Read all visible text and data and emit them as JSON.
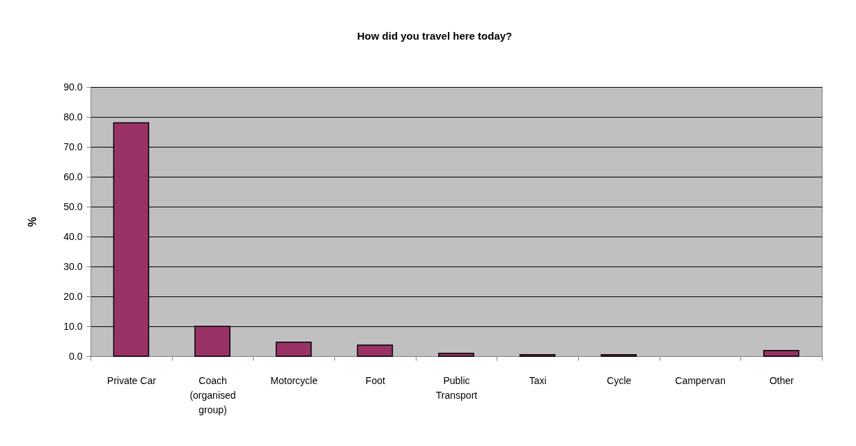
{
  "chart_data": {
    "type": "bar",
    "title": "How did you travel here today?",
    "ylabel": "%",
    "categories": [
      "Private Car",
      "Coach (organised group)",
      "Motorcycle",
      "Foot",
      "Public Transport",
      "Taxi",
      "Cycle",
      "Campervan",
      "Other"
    ],
    "values": [
      78.0,
      10.0,
      4.7,
      3.7,
      1.0,
      0.5,
      0.5,
      null,
      1.9
    ],
    "color": "#993366",
    "ylim": [
      0,
      90
    ],
    "yticks": [
      {
        "value": 0,
        "label": "0.0"
      },
      {
        "value": 10,
        "label": "10.0"
      },
      {
        "value": 20,
        "label": "20.0"
      },
      {
        "value": 30,
        "label": "30.0"
      },
      {
        "value": 40,
        "label": "40.0"
      },
      {
        "value": 50,
        "label": "50.0"
      },
      {
        "value": 60,
        "label": "60.0"
      },
      {
        "value": 70,
        "label": "70.0"
      },
      {
        "value": 80,
        "label": "80.0"
      },
      {
        "value": 90,
        "label": "90.0"
      }
    ],
    "grid": "y"
  }
}
